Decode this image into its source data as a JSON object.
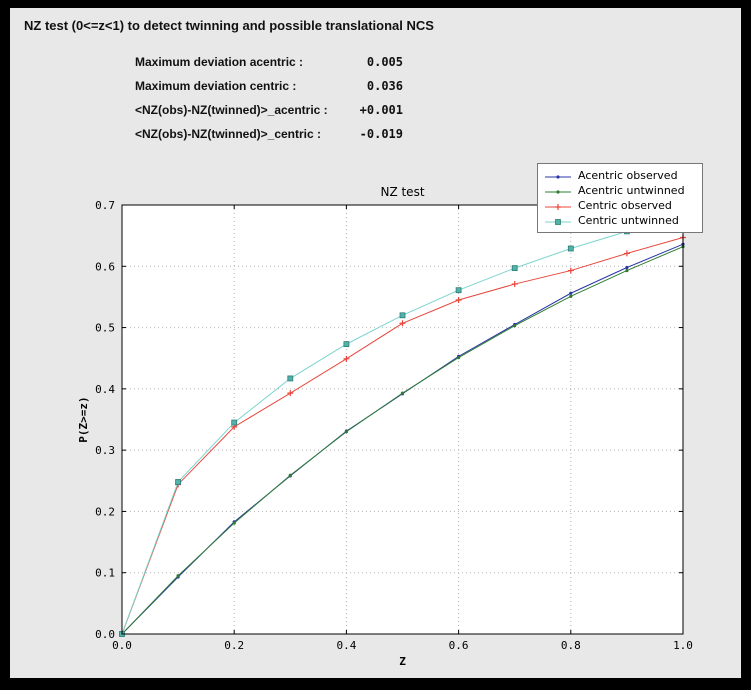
{
  "window": {
    "frame_color": "#000000",
    "panel_color": "#e8e8e8"
  },
  "header": {
    "title": "NZ test (0<=z<1) to detect twinning and possible translational NCS"
  },
  "stats": {
    "rows": [
      {
        "label": "Maximum deviation acentric :",
        "value": "0.005"
      },
      {
        "label": "Maximum deviation centric :",
        "value": "0.036"
      },
      {
        "label": "<NZ(obs)-NZ(twinned)>_acentric :",
        "value": "+0.001"
      },
      {
        "label": "<NZ(obs)-NZ(twinned)>_centric :",
        "value": "-0.019"
      }
    ]
  },
  "chart_data": {
    "type": "line",
    "title": "NZ test",
    "xlabel": "Z",
    "ylabel": "P(Z>=z)",
    "xlim": [
      0.0,
      1.0
    ],
    "ylim": [
      0.0,
      0.7
    ],
    "xticks": [
      0.0,
      0.2,
      0.4,
      0.6,
      0.8,
      1.0
    ],
    "yticks": [
      0.0,
      0.1,
      0.2,
      0.3,
      0.4,
      0.5,
      0.6,
      0.7
    ],
    "grid": true,
    "grid_color": "#b5b5b5",
    "plot_bg": "#ffffff",
    "legend_position": "top-right",
    "x": [
      0.0,
      0.1,
      0.2,
      0.3,
      0.4,
      0.5,
      0.6,
      0.7,
      0.8,
      0.9,
      1.0
    ],
    "series": [
      {
        "name": "Acentric observed",
        "color": "#2a35a8",
        "marker": "dot",
        "values": [
          0.0,
          0.093,
          0.183,
          0.258,
          0.331,
          0.392,
          0.453,
          0.505,
          0.556,
          0.598,
          0.636
        ]
      },
      {
        "name": "Acentric untwinned",
        "color": "#2e7d32",
        "marker": "dot",
        "values": [
          0.0,
          0.095,
          0.181,
          0.259,
          0.33,
          0.393,
          0.451,
          0.503,
          0.551,
          0.593,
          0.632
        ]
      },
      {
        "name": "Centric observed",
        "color": "#e8463c",
        "marker": "plus",
        "values": [
          0.0,
          0.244,
          0.338,
          0.393,
          0.449,
          0.507,
          0.545,
          0.571,
          0.593,
          0.621,
          0.647
        ]
      },
      {
        "name": "Centric untwinned",
        "color": "#7cd4cd",
        "marker": "square",
        "marker_fill": "#4fb3aa",
        "marker_edge": "#2e7d75",
        "values": [
          0.0,
          0.248,
          0.345,
          0.417,
          0.473,
          0.52,
          0.561,
          0.597,
          0.629,
          0.657,
          0.683
        ]
      }
    ]
  }
}
